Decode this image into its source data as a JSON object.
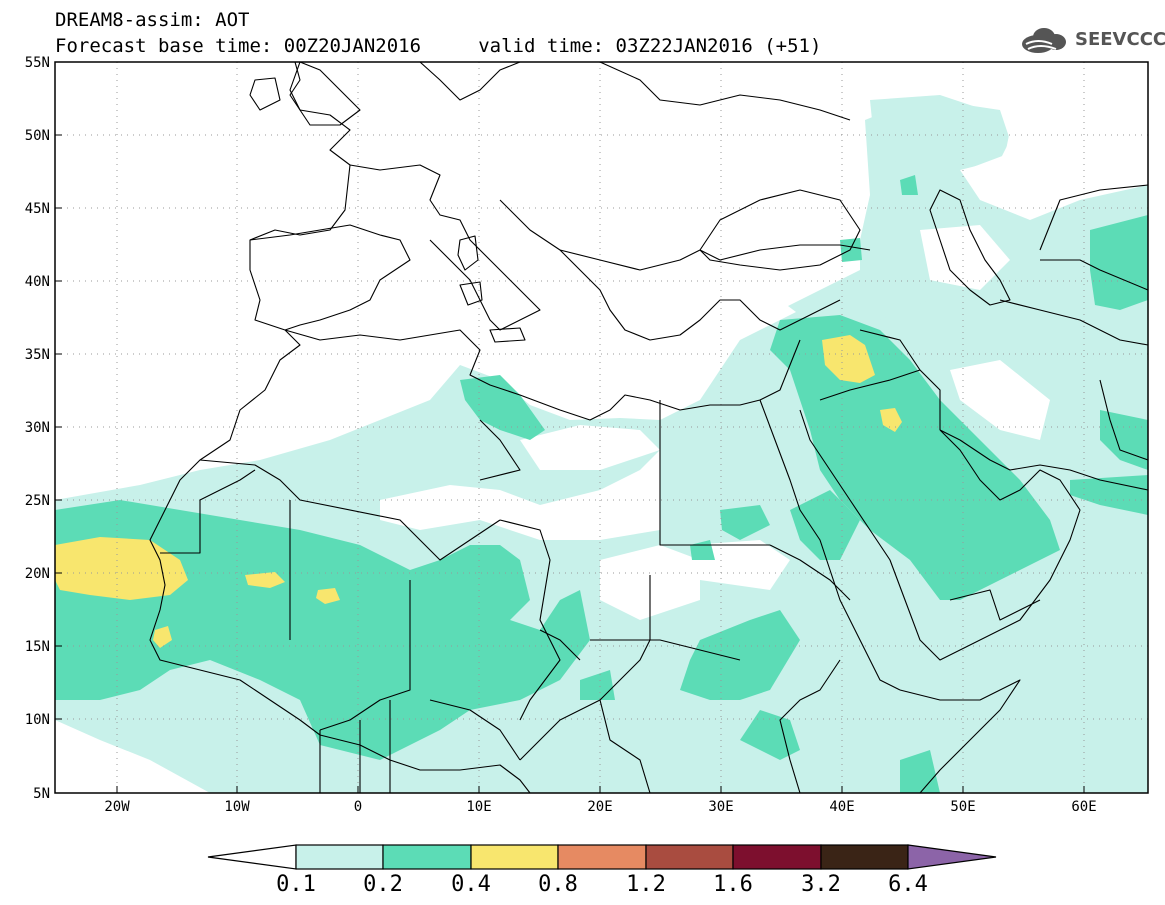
{
  "header": {
    "title_line1": "DREAM8-assim: AOT",
    "title_line2": "Forecast base time: 00Z20JAN2016     valid time: 03Z22JAN2016 (+51)",
    "logo_text": "SEEVCCC"
  },
  "map": {
    "lat_labels": [
      "55N",
      "50N",
      "45N",
      "40N",
      "35N",
      "30N",
      "25N",
      "20N",
      "15N",
      "10N",
      "5N"
    ],
    "lon_labels": [
      "20W",
      "10W",
      "0",
      "10E",
      "20E",
      "30E",
      "40E",
      "50E",
      "60E"
    ],
    "field": "AOT",
    "region": "North Africa, Middle East and Europe"
  },
  "colorbar": {
    "labels": [
      "0.1",
      "0.2",
      "0.4",
      "0.8",
      "1.2",
      "1.6",
      "3.2",
      "6.4"
    ],
    "colors": [
      "#ffffff",
      "#c8f1ea",
      "#5cdcb6",
      "#f8e66e",
      "#e68a62",
      "#a94c40",
      "#7d0f2e",
      "#3a2416",
      "#8c64a8"
    ]
  }
}
